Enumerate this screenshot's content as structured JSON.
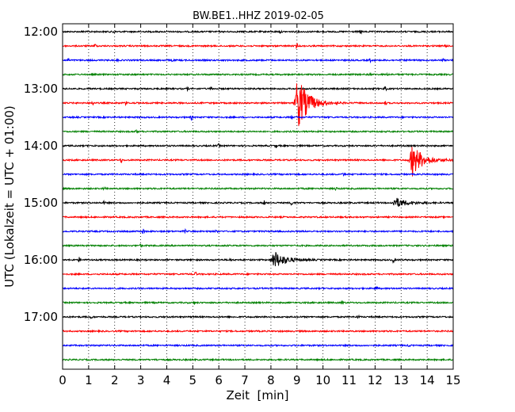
{
  "chart_data": {
    "type": "line",
    "title": "BW.BE1..HHZ 2019-02-05",
    "xlabel": "Zeit  [min]",
    "ylabel": "UTC (Lokalzeit = UTC + 01:00)",
    "xlim": [
      0,
      15
    ],
    "x_ticks": [
      0,
      1,
      2,
      3,
      4,
      5,
      6,
      7,
      8,
      9,
      10,
      11,
      12,
      13,
      14,
      15
    ],
    "grid": "vertical dotted",
    "y_tick_labels": [
      "12:00",
      "13:00",
      "14:00",
      "15:00",
      "16:00",
      "17:00"
    ],
    "trace_colors": [
      "#000000",
      "#ff0000",
      "#0000ff",
      "#008000"
    ],
    "traces": [
      {
        "start": "12:00",
        "color": "#000000",
        "events": [
          {
            "x": 0.8,
            "amp": 1.0
          },
          {
            "x": 1.95,
            "amp": 2.5
          },
          {
            "x": 8.35,
            "amp": 2.0
          },
          {
            "x": 11.45,
            "amp": 2.5
          }
        ]
      },
      {
        "start": "12:15",
        "color": "#ff0000",
        "events": [
          {
            "x": 1.25,
            "amp": 3.0
          },
          {
            "x": 9.0,
            "amp": 3.0
          },
          {
            "x": 14.7,
            "amp": 2.5
          }
        ]
      },
      {
        "start": "12:30",
        "color": "#0000ff",
        "events": [
          {
            "x": 0.2,
            "amp": 2.5
          },
          {
            "x": 2.1,
            "amp": 1.5
          },
          {
            "x": 4.2,
            "amp": 2.0
          },
          {
            "x": 11.8,
            "amp": 2.0
          },
          {
            "x": 14.6,
            "amp": 1.5
          }
        ]
      },
      {
        "start": "12:45",
        "color": "#008000",
        "events": [
          {
            "x": 11.8,
            "amp": 1.5
          },
          {
            "x": 12.5,
            "amp": 1.5
          }
        ]
      },
      {
        "start": "13:00",
        "color": "#000000",
        "events": [
          {
            "x": 4.8,
            "amp": 2.0
          },
          {
            "x": 5.7,
            "amp": 2.5
          },
          {
            "x": 12.4,
            "amp": 2.5
          }
        ]
      },
      {
        "start": "13:15",
        "color": "#ff0000",
        "events": [
          {
            "x": 1.15,
            "amp": 3.0
          },
          {
            "x": 2.45,
            "amp": 3.5
          },
          {
            "x": 9.0,
            "amp": 36.0
          },
          {
            "x": 12.4,
            "amp": 2.5
          }
        ]
      },
      {
        "start": "13:30",
        "color": "#0000ff",
        "events": [
          {
            "x": 4.95,
            "amp": 3.0
          },
          {
            "x": 8.8,
            "amp": 2.0
          }
        ]
      },
      {
        "start": "13:45",
        "color": "#008000",
        "events": [
          {
            "x": 2.85,
            "amp": 2.0
          }
        ]
      },
      {
        "start": "14:00",
        "color": "#000000",
        "events": [
          {
            "x": 6.0,
            "amp": 2.0
          },
          {
            "x": 8.2,
            "amp": 2.5
          }
        ]
      },
      {
        "start": "14:15",
        "color": "#ff0000",
        "events": [
          {
            "x": 2.25,
            "amp": 3.0
          },
          {
            "x": 13.4,
            "amp": 22.0
          }
        ]
      },
      {
        "start": "14:30",
        "color": "#0000ff",
        "events": [
          {
            "x": 10.8,
            "amp": 3.0
          }
        ]
      },
      {
        "start": "14:45",
        "color": "#008000",
        "events": [
          {
            "x": 1.6,
            "amp": 2.0
          },
          {
            "x": 10.5,
            "amp": 2.0
          }
        ]
      },
      {
        "start": "15:00",
        "color": "#000000",
        "events": [
          {
            "x": 1.6,
            "amp": 2.0
          },
          {
            "x": 7.75,
            "amp": 3.0
          },
          {
            "x": 8.8,
            "amp": 3.0
          },
          {
            "x": 12.75,
            "amp": 7.0
          }
        ]
      },
      {
        "start": "15:15",
        "color": "#ff0000",
        "events": []
      },
      {
        "start": "15:30",
        "color": "#0000ff",
        "events": [
          {
            "x": 3.1,
            "amp": 3.0
          },
          {
            "x": 4.7,
            "amp": 2.0
          },
          {
            "x": 5.9,
            "amp": 2.0
          }
        ]
      },
      {
        "start": "15:45",
        "color": "#008000",
        "events": [
          {
            "x": 3.0,
            "amp": 1.5
          }
        ]
      },
      {
        "start": "16:00",
        "color": "#000000",
        "events": [
          {
            "x": 0.65,
            "amp": 3.0
          },
          {
            "x": 6.45,
            "amp": 2.0
          },
          {
            "x": 8.1,
            "amp": 12.0
          },
          {
            "x": 12.7,
            "amp": 3.0
          }
        ]
      },
      {
        "start": "16:15",
        "color": "#ff0000",
        "events": [
          {
            "x": 5.1,
            "amp": 3.0
          }
        ]
      },
      {
        "start": "16:30",
        "color": "#0000ff",
        "events": [
          {
            "x": 12.05,
            "amp": 4.0
          }
        ]
      },
      {
        "start": "16:45",
        "color": "#008000",
        "events": [
          {
            "x": 5.05,
            "amp": 2.0
          },
          {
            "x": 10.75,
            "amp": 3.0
          }
        ]
      },
      {
        "start": "17:00",
        "color": "#000000",
        "events": [
          {
            "x": 1.1,
            "amp": 1.5
          },
          {
            "x": 11.35,
            "amp": 2.0
          }
        ]
      },
      {
        "start": "17:15",
        "color": "#ff0000",
        "events": []
      },
      {
        "start": "17:30",
        "color": "#0000ff",
        "events": [
          {
            "x": 13.3,
            "amp": 1.5
          }
        ]
      },
      {
        "start": "17:45",
        "color": "#008000",
        "events": [
          {
            "x": 3.6,
            "amp": 1.0
          }
        ]
      }
    ]
  }
}
